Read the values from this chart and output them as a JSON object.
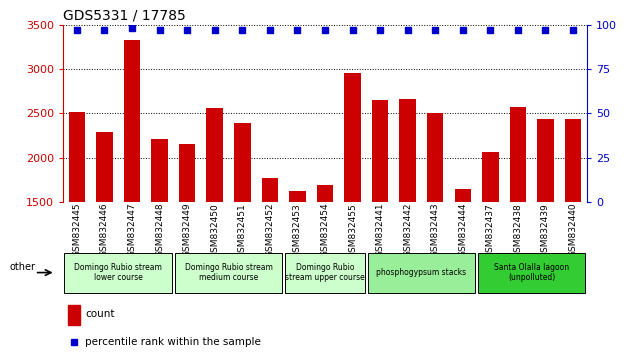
{
  "title": "GDS5331 / 17785",
  "categories": [
    "GSM832445",
    "GSM832446",
    "GSM832447",
    "GSM832448",
    "GSM832449",
    "GSM832450",
    "GSM832451",
    "GSM832452",
    "GSM832453",
    "GSM832454",
    "GSM832455",
    "GSM832441",
    "GSM832442",
    "GSM832443",
    "GSM832444",
    "GSM832437",
    "GSM832438",
    "GSM832439",
    "GSM832440"
  ],
  "counts": [
    2510,
    2290,
    3330,
    2210,
    2150,
    2560,
    2390,
    1770,
    1620,
    1690,
    2950,
    2650,
    2660,
    2500,
    1640,
    2060,
    2570,
    2440,
    2440
  ],
  "percentiles": [
    97,
    97,
    98,
    97,
    97,
    97,
    97,
    97,
    97,
    97,
    97,
    97,
    97,
    97,
    97,
    97,
    97,
    97,
    97
  ],
  "ylim_left": [
    1500,
    3500
  ],
  "ylim_right": [
    0,
    100
  ],
  "yticks_left": [
    1500,
    2000,
    2500,
    3000,
    3500
  ],
  "yticks_right": [
    0,
    25,
    50,
    75,
    100
  ],
  "bar_color": "#cc0000",
  "dot_color": "#0000cc",
  "groups": [
    {
      "label": "Domingo Rubio stream\nlower course",
      "start": 0,
      "end": 4,
      "color": "#ccffcc"
    },
    {
      "label": "Domingo Rubio stream\nmedium course",
      "start": 4,
      "end": 8,
      "color": "#ccffcc"
    },
    {
      "label": "Domingo Rubio\nstream upper course",
      "start": 8,
      "end": 11,
      "color": "#ccffcc"
    },
    {
      "label": "phosphogypsum stacks",
      "start": 11,
      "end": 15,
      "color": "#99ee99"
    },
    {
      "label": "Santa Olalla lagoon\n(unpolluted)",
      "start": 15,
      "end": 19,
      "color": "#33cc33"
    }
  ],
  "other_label": "other",
  "legend_count_label": "count",
  "legend_pct_label": "percentile rank within the sample",
  "background_color": "#ffffff",
  "tick_area_color": "#c8c8c8"
}
